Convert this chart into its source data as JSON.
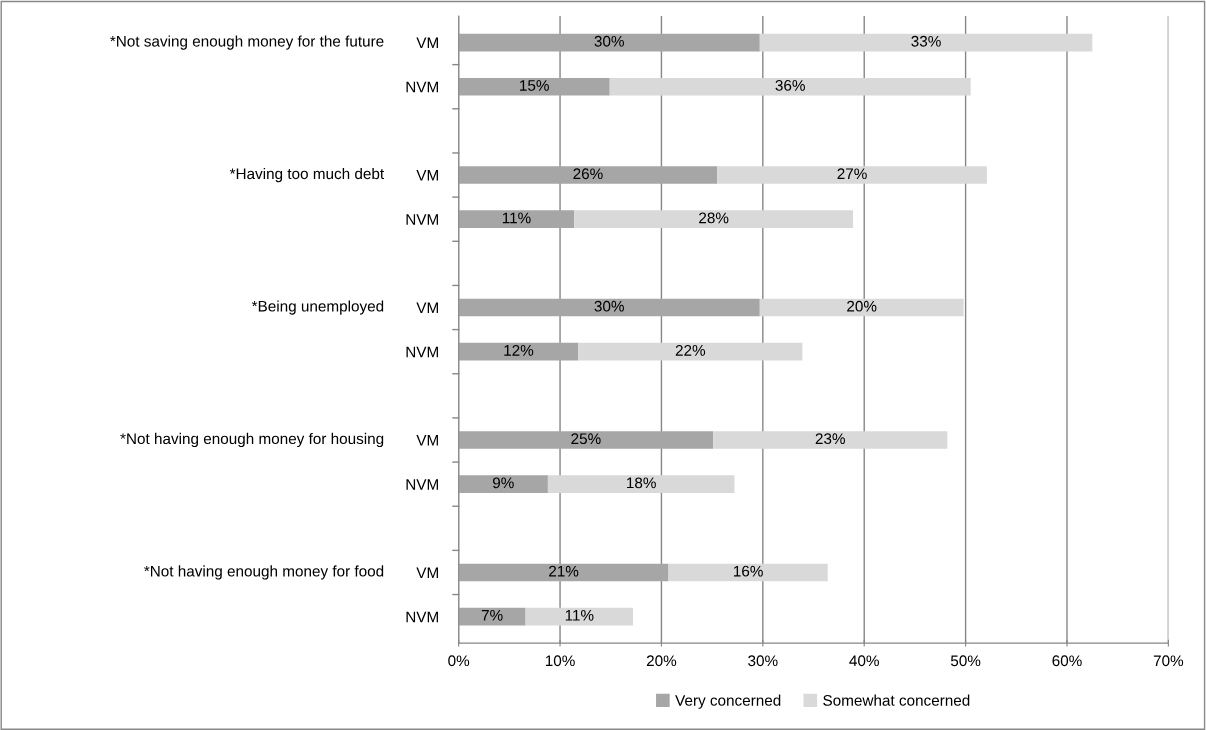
{
  "chart_data": {
    "type": "bar",
    "orientation": "horizontal",
    "stacked": true,
    "categories": [
      "VM",
      "NVM",
      null,
      "VM",
      "NVM",
      null,
      "VM",
      "NVM",
      null,
      "VM",
      "NVM",
      null,
      "VM",
      "NVM"
    ],
    "series": [
      {
        "name": "Very concerned",
        "color": "#a6a6a6",
        "values": [
          29.7,
          14.9,
          null,
          25.5,
          11.4,
          null,
          29.7,
          11.8,
          null,
          25.1,
          8.8,
          null,
          20.7,
          6.6
        ],
        "value_labels": [
          "30%",
          "15%",
          null,
          "26%",
          "11%",
          null,
          "30%",
          "12%",
          null,
          "25%",
          "9%",
          null,
          "21%",
          "7%"
        ]
      },
      {
        "name": "Somewhat concerned",
        "color": "#d9d9d9",
        "values": [
          32.8,
          35.6,
          null,
          26.6,
          27.5,
          null,
          20.1,
          22.1,
          null,
          23.1,
          18.4,
          null,
          15.7,
          10.6
        ],
        "value_labels": [
          "33%",
          "36%",
          null,
          "27%",
          "28%",
          null,
          "20%",
          "22%",
          null,
          "23%",
          "18%",
          null,
          "16%",
          "11%"
        ]
      }
    ],
    "annotations": [
      "*Not saving enough money for the future",
      "*Having too much debt",
      "*Being unemployed",
      "*Not having enough money for housing",
      "*Not having enough money for food"
    ],
    "xlim": [
      0,
      70
    ],
    "xticks": [
      {
        "value": 0,
        "label": "0%"
      },
      {
        "value": 10,
        "label": "10%"
      },
      {
        "value": 20,
        "label": "20%"
      },
      {
        "value": 30,
        "label": "30%"
      },
      {
        "value": 40,
        "label": "40%"
      },
      {
        "value": 50,
        "label": "50%"
      },
      {
        "value": 60,
        "label": "60%"
      },
      {
        "value": 70,
        "label": "70%"
      }
    ],
    "grid": "x",
    "legend": "bottom"
  }
}
